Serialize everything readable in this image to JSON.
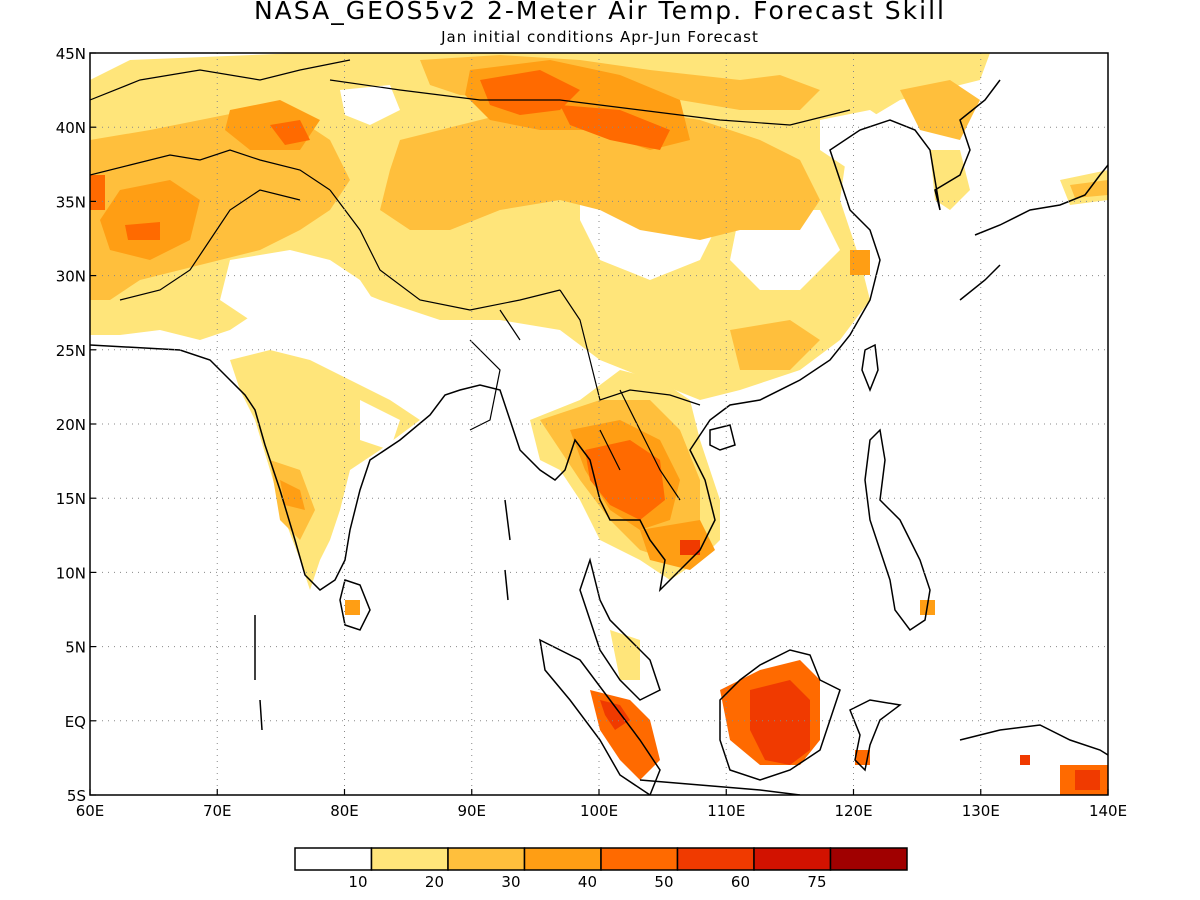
{
  "title": "NASA_GEOS5v2 2-Meter Air Temp. Forecast Skill",
  "subtitle": "Jan initial conditions  Apr-Jun Forecast",
  "map": {
    "lon_range": [
      60,
      140
    ],
    "lat_range": [
      -5,
      45
    ],
    "lon_ticks": [
      "60E",
      "70E",
      "80E",
      "90E",
      "100E",
      "110E",
      "120E",
      "130E",
      "140E"
    ],
    "lat_ticks": [
      "45N",
      "40N",
      "35N",
      "30N",
      "25N",
      "20N",
      "15N",
      "10N",
      "5N",
      "EQ",
      "5S"
    ],
    "grid": true
  },
  "colorbar": {
    "labels": [
      "10",
      "20",
      "30",
      "40",
      "50",
      "60",
      "75"
    ],
    "colors": [
      "#ffffff",
      "#ffe57a",
      "#ffbf3c",
      "#ff9e14",
      "#ff6a00",
      "#f03a00",
      "#d21200",
      "#a00000"
    ]
  }
}
